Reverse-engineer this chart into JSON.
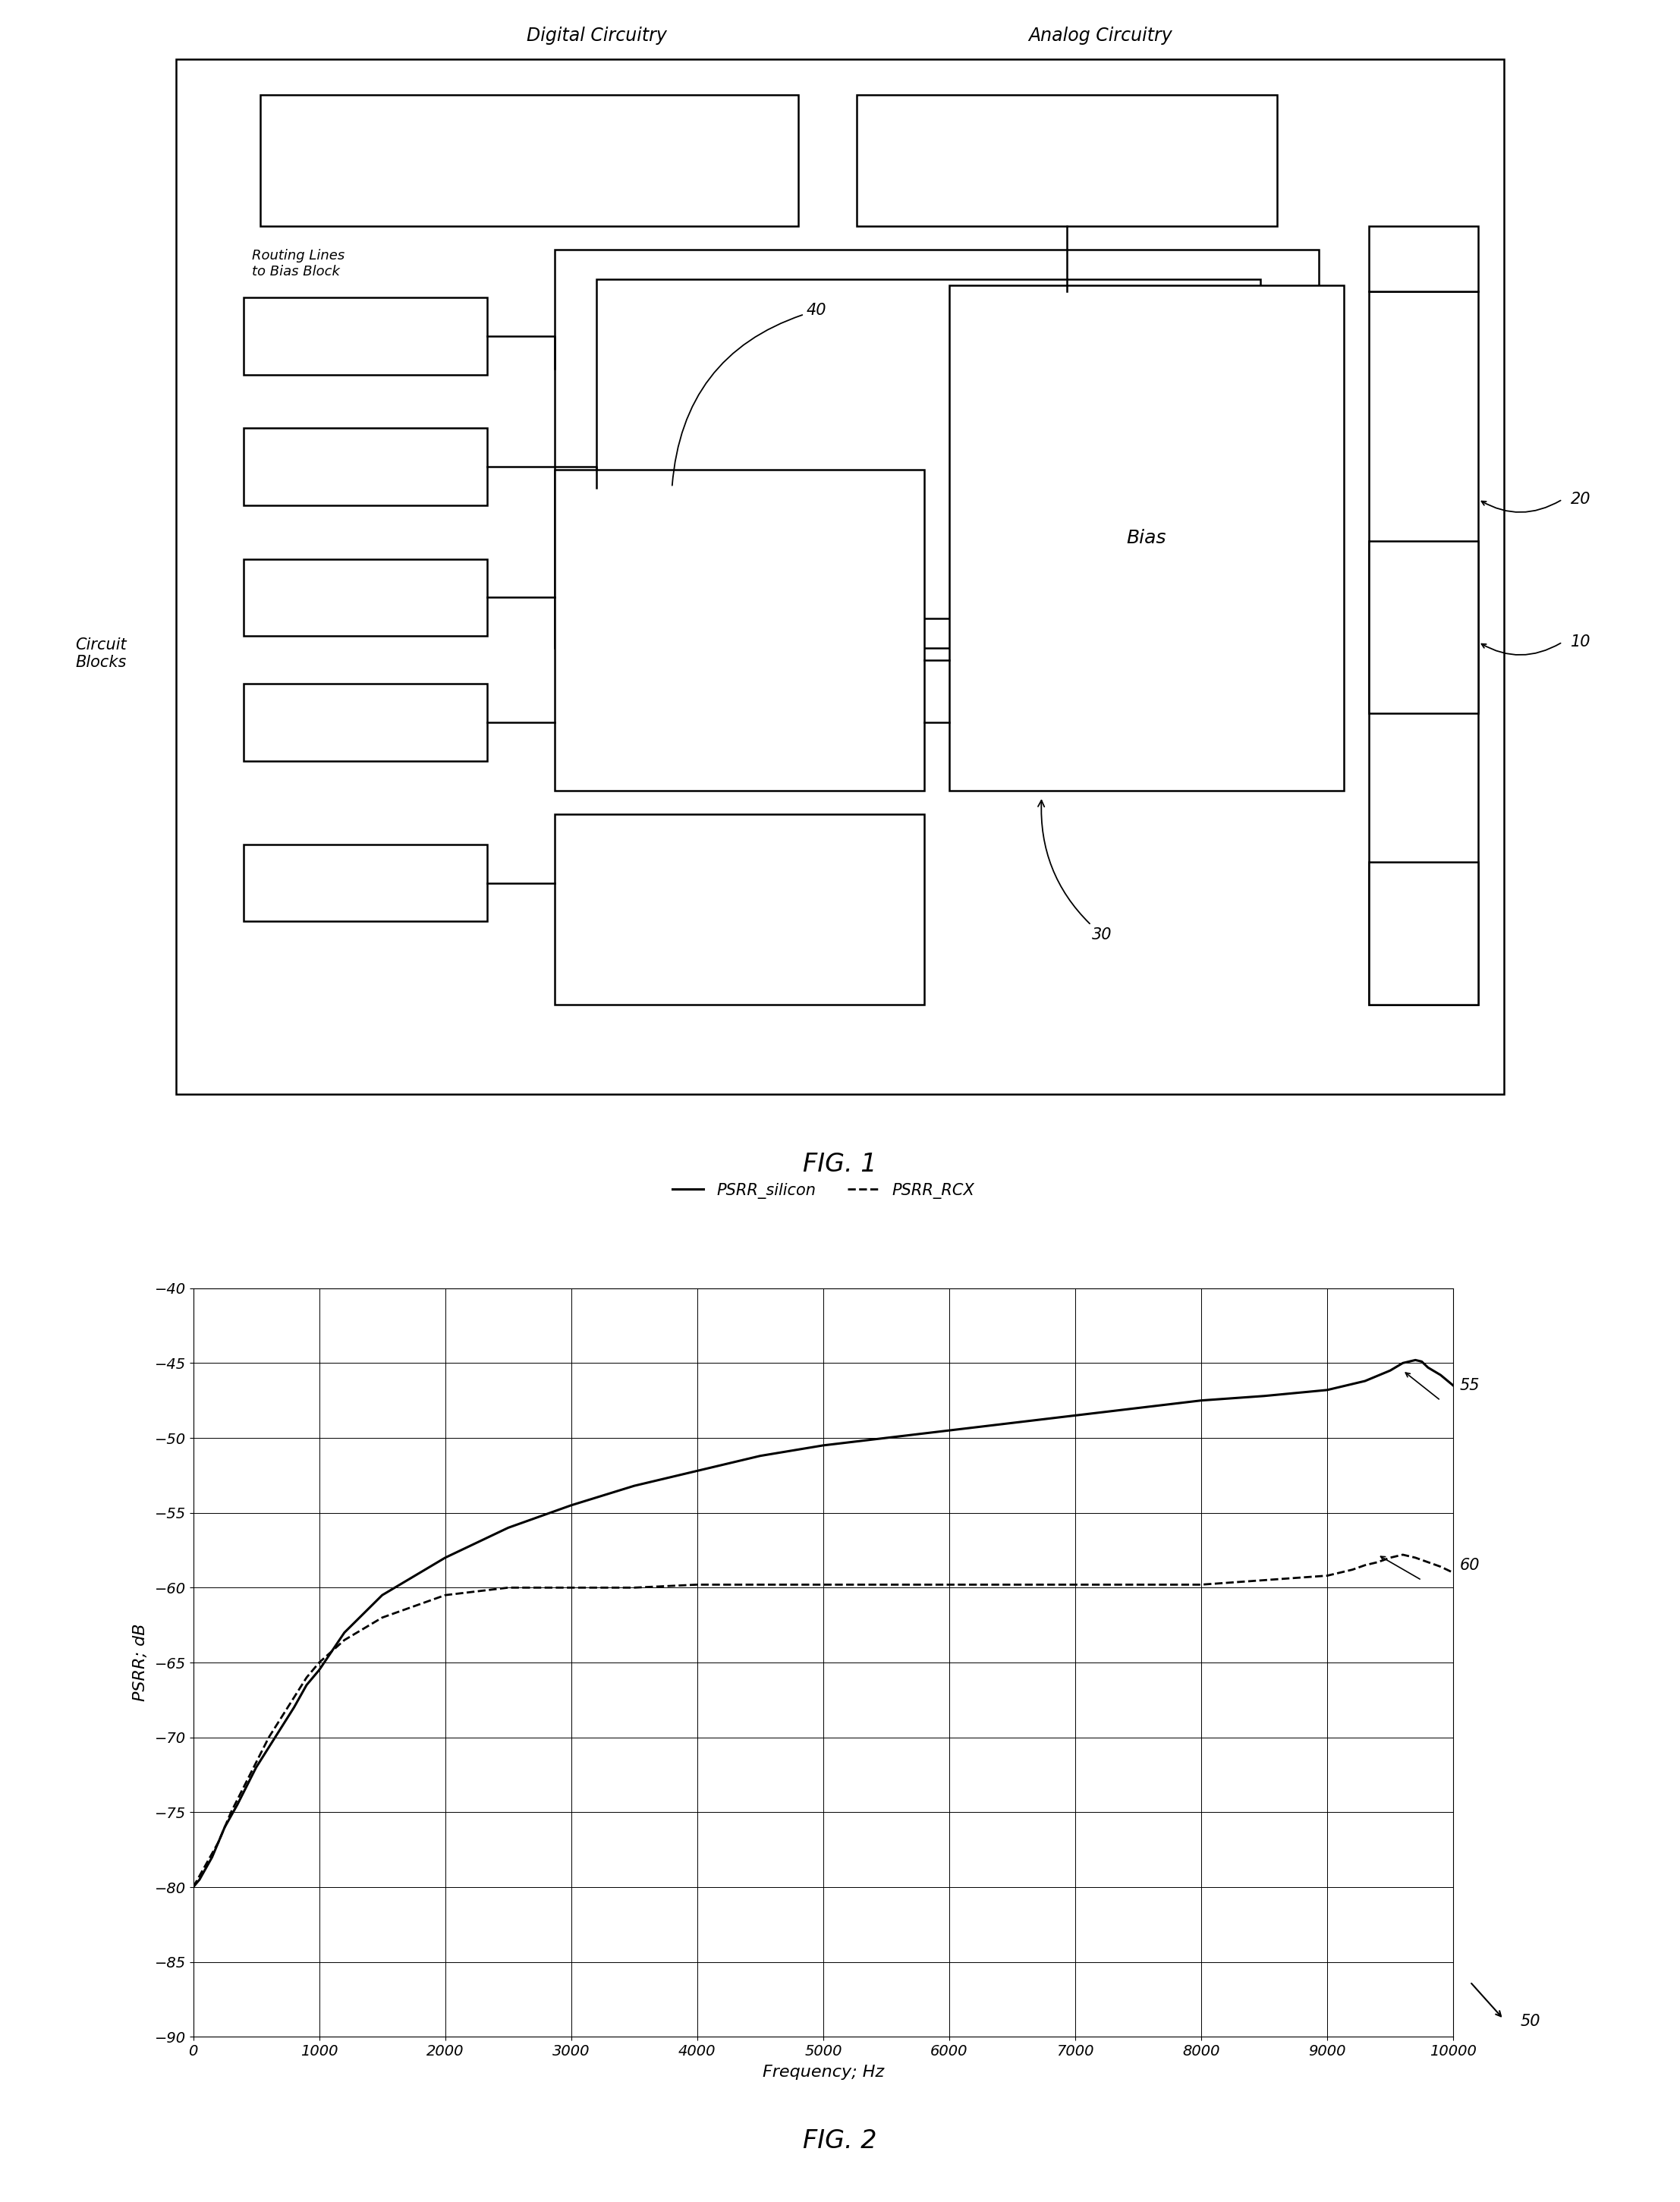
{
  "fig1": {
    "title": "FIG. 1",
    "labels": {
      "digital_circuitry": "Digital Circuitry",
      "analog_circuitry": "Analog Circuitry",
      "routing_lines": "Routing Lines\nto Bias Block",
      "circuit_blocks": "Circuit\nBlocks",
      "bias": "Bias",
      "label_40": "40",
      "label_30": "30",
      "label_20": "20",
      "label_10": "10"
    }
  },
  "fig2": {
    "title": "FIG. 2",
    "legend_solid": "PSRR_silicon",
    "legend_dashed": "PSRR_RCX",
    "xlabel": "Frequency; Hz",
    "ylabel": "PSRR; dB",
    "xlim": [
      0,
      10000
    ],
    "ylim": [
      -90,
      -40
    ],
    "xticks": [
      0,
      1000,
      2000,
      3000,
      4000,
      5000,
      6000,
      7000,
      8000,
      9000,
      10000
    ],
    "yticks": [
      -90,
      -85,
      -80,
      -75,
      -70,
      -65,
      -60,
      -55,
      -50,
      -45,
      -40
    ],
    "label_50": "50",
    "label_55": "55",
    "label_60": "60",
    "psrr_silicon_x": [
      0,
      50,
      150,
      250,
      350,
      500,
      650,
      800,
      900,
      1000,
      1200,
      1500,
      2000,
      2500,
      3000,
      3500,
      4000,
      4500,
      5000,
      5500,
      6000,
      6500,
      7000,
      7500,
      8000,
      8500,
      9000,
      9300,
      9500,
      9600,
      9700,
      9750,
      9800,
      9900,
      10000
    ],
    "psrr_silicon_y": [
      -80,
      -79.5,
      -78,
      -76,
      -74.5,
      -72,
      -70,
      -68,
      -66.5,
      -65.5,
      -63,
      -60.5,
      -58,
      -56,
      -54.5,
      -53.2,
      -52.2,
      -51.2,
      -50.5,
      -50,
      -49.5,
      -49,
      -48.5,
      -48,
      -47.5,
      -47.2,
      -46.8,
      -46.2,
      -45.5,
      -45.0,
      -44.8,
      -44.9,
      -45.3,
      -45.8,
      -46.5
    ],
    "psrr_rcx_x": [
      0,
      100,
      200,
      300,
      450,
      600,
      750,
      900,
      1000,
      1200,
      1500,
      2000,
      2500,
      3000,
      3500,
      4000,
      4500,
      5000,
      5500,
      6000,
      6500,
      7000,
      7500,
      8000,
      8500,
      9000,
      9200,
      9300,
      9400,
      9500,
      9600,
      9700,
      9800,
      9900,
      10000
    ],
    "psrr_rcx_y": [
      -80,
      -78.5,
      -77,
      -75,
      -72.5,
      -70,
      -68,
      -66,
      -65,
      -63.5,
      -62,
      -60.5,
      -60,
      -60,
      -60,
      -59.8,
      -59.8,
      -59.8,
      -59.8,
      -59.8,
      -59.8,
      -59.8,
      -59.8,
      -59.8,
      -59.5,
      -59.2,
      -58.8,
      -58.5,
      -58.3,
      -58.0,
      -57.8,
      -58.0,
      -58.3,
      -58.6,
      -59.0
    ]
  }
}
